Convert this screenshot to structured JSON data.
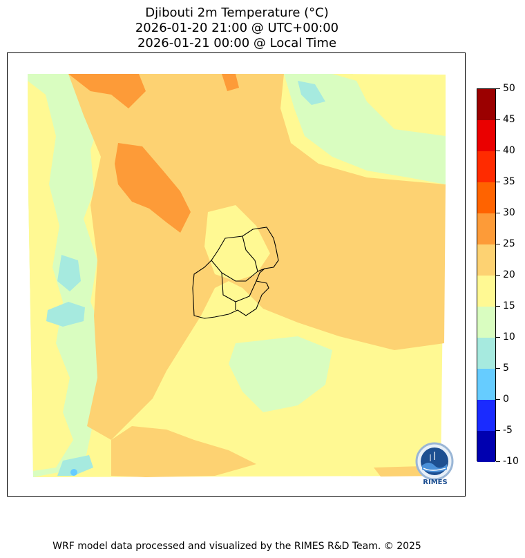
{
  "title": {
    "line1": "Djibouti 2m Temperature (°C)",
    "line2": "2026-01-20 21:00 @ UTC+00:00",
    "line3": "2026-01-21 00:00 @ Local Time"
  },
  "footer": "WRF model data processed and visualized by the RIMES R&D Team. © 2025",
  "logo": {
    "text": "RIMES"
  },
  "colorbar": {
    "unit": "°C",
    "ticks": [
      "50",
      "45",
      "40",
      "35",
      "30",
      "25",
      "20",
      "15",
      "10",
      "5",
      "0",
      "-5",
      "-10"
    ],
    "bins": [
      {
        "min": -10,
        "max": -5,
        "color": "#0000b0"
      },
      {
        "min": -5,
        "max": 0,
        "color": "#1a2bff"
      },
      {
        "min": 0,
        "max": 5,
        "color": "#66ccff"
      },
      {
        "min": 5,
        "max": 10,
        "color": "#a6eadf"
      },
      {
        "min": 10,
        "max": 15,
        "color": "#d9fdc0"
      },
      {
        "min": 15,
        "max": 20,
        "color": "#fff993"
      },
      {
        "min": 20,
        "max": 25,
        "color": "#fdd272"
      },
      {
        "min": 25,
        "max": 30,
        "color": "#fd9b38"
      },
      {
        "min": 30,
        "max": 35,
        "color": "#ff6300"
      },
      {
        "min": 35,
        "max": 40,
        "color": "#ff2b00"
      },
      {
        "min": 40,
        "max": 45,
        "color": "#ea0000"
      },
      {
        "min": 45,
        "max": 50,
        "color": "#9b0000"
      }
    ]
  },
  "map_colors": {
    "cool": "#a6eadf",
    "mild": "#d9fdc0",
    "warm": "#fff993",
    "warmer": "#fdd272",
    "hot": "#fd9b38",
    "coldest": "#66ccff",
    "boundary": "#000000"
  }
}
